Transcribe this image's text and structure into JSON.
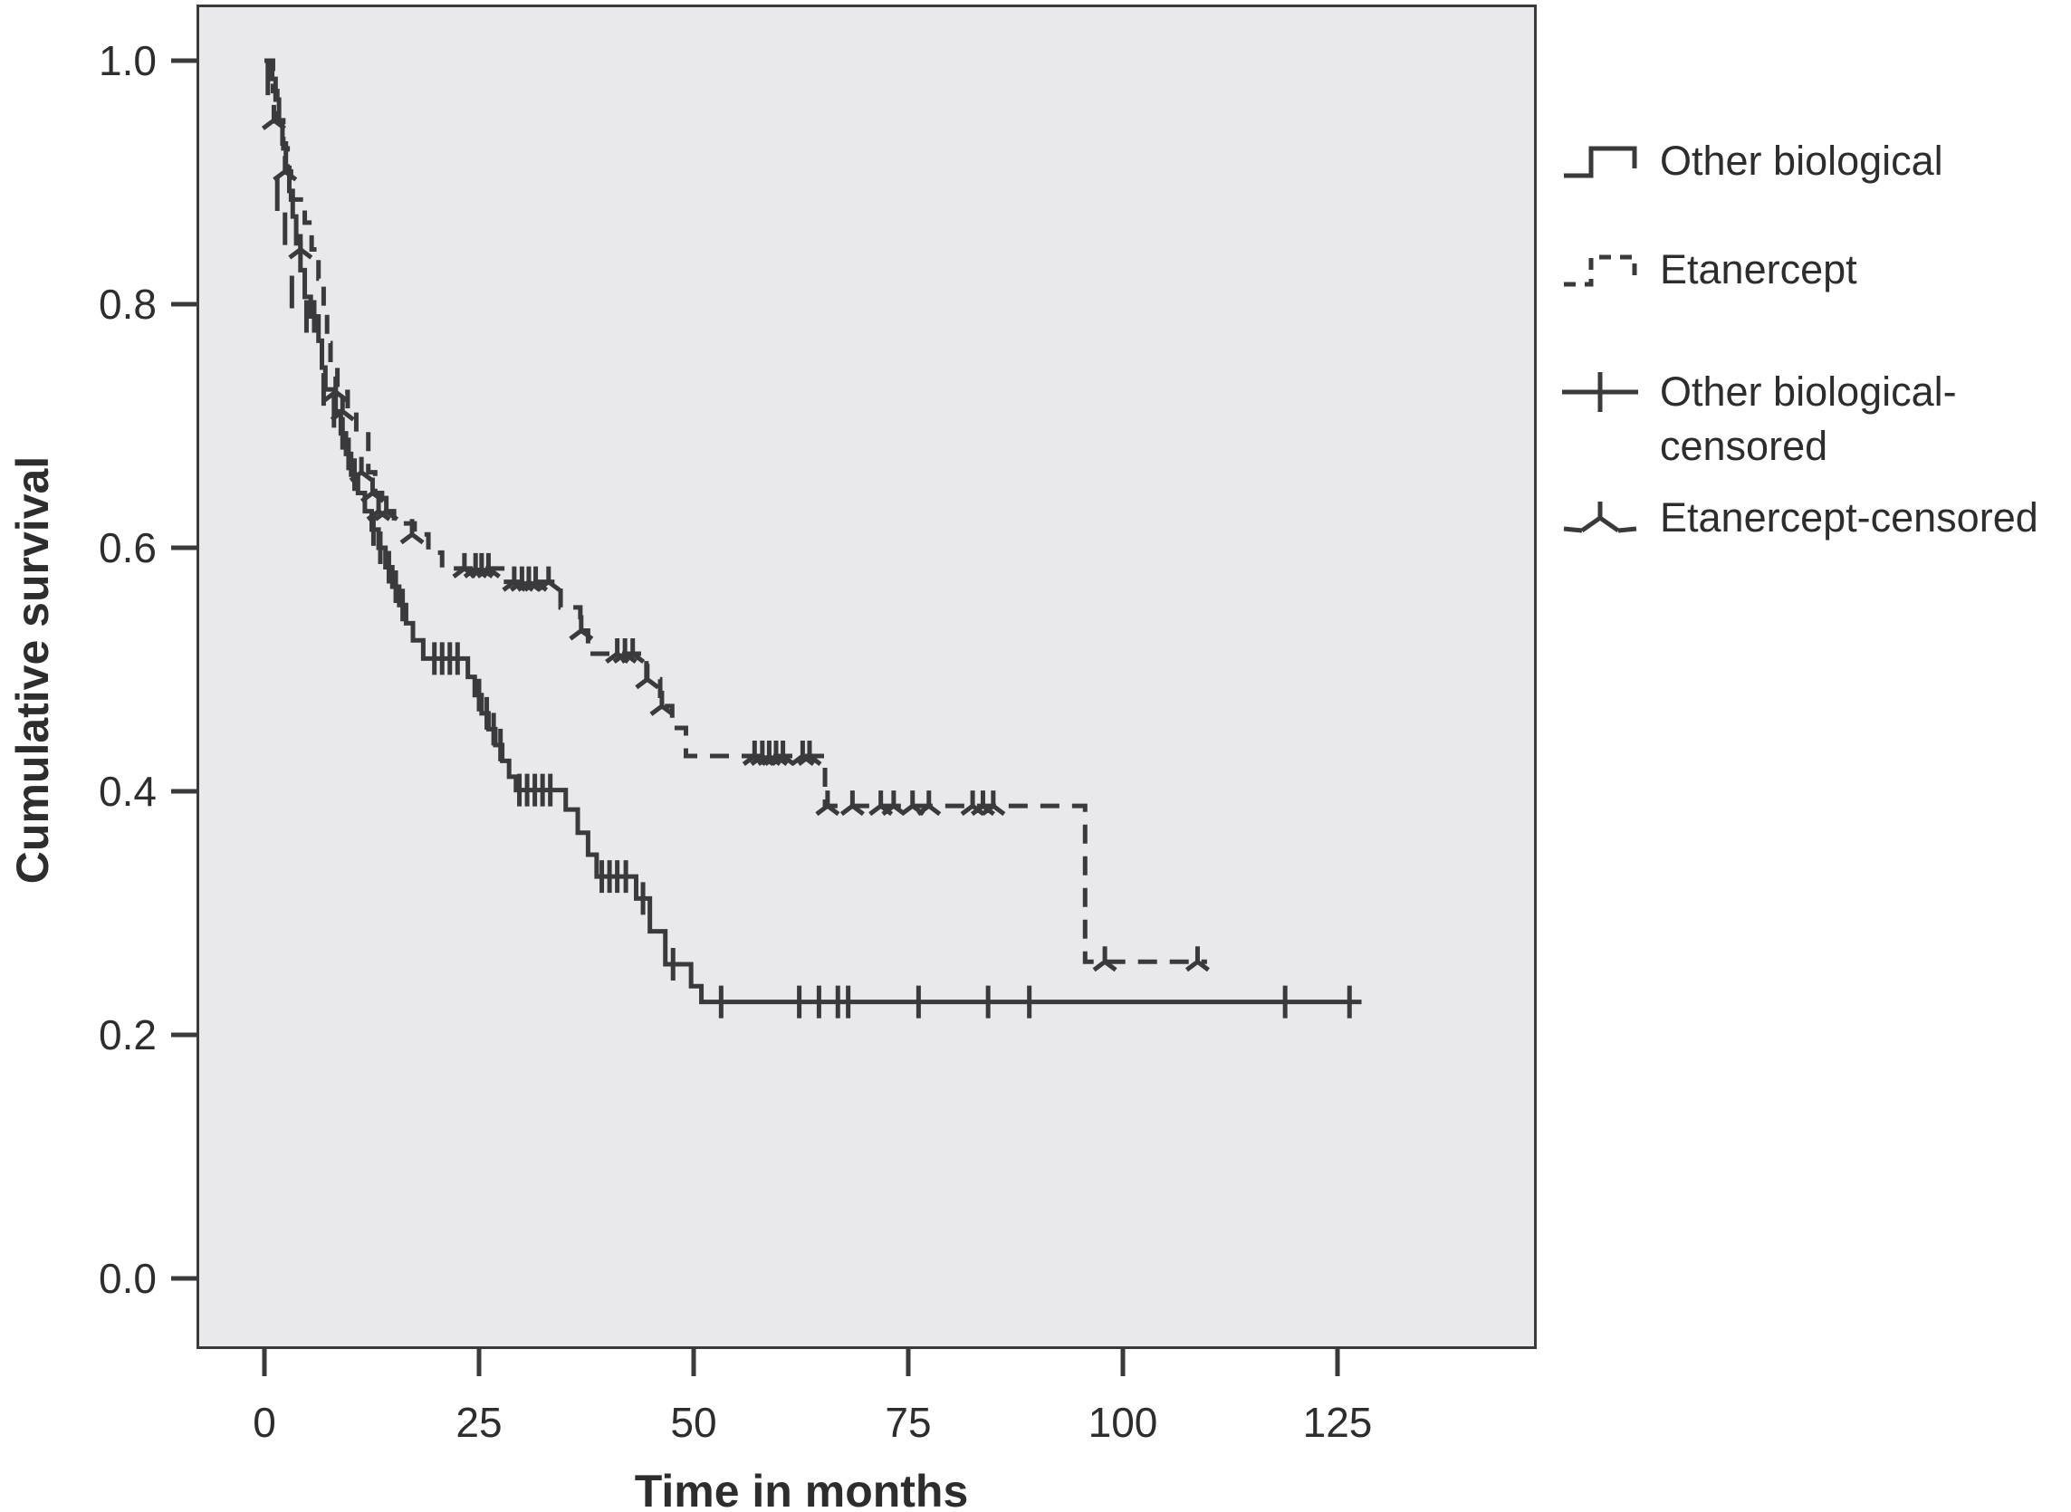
{
  "figure": {
    "background_color": "#ffffff",
    "plot_background_color": "#e9e9eb",
    "line_color": "#3a3a3c",
    "text_color": "#2d2d2f",
    "border_color": "#3a3a3c"
  },
  "axes": {
    "y": {
      "title": "Cumulative survival",
      "tick_labels": [
        "1.0",
        "0.8",
        "0.6",
        "0.4",
        "0.2",
        "0.0"
      ],
      "tick_values": [
        1.0,
        0.8,
        0.6,
        0.4,
        0.2,
        0.0
      ]
    },
    "x": {
      "title": "Time in months",
      "tick_labels": [
        "0",
        "25",
        "50",
        "75",
        "100",
        "125"
      ],
      "tick_values": [
        0,
        25,
        50,
        75,
        100,
        125
      ]
    }
  },
  "legend": {
    "items": [
      {
        "label": "Other biological",
        "label_lines": [
          "Other biological"
        ],
        "symbol": "solid-step"
      },
      {
        "label": "Etanercept",
        "label_lines": [
          "Etanercept"
        ],
        "symbol": "dashed-step"
      },
      {
        "label": "Other biological-censored",
        "label_lines": [
          "Other biological-",
          "censored"
        ],
        "symbol": "plus"
      },
      {
        "label": "Etanercept-censored",
        "label_lines": [
          "Etanercept-censored"
        ],
        "symbol": "tripod"
      }
    ]
  },
  "chart_data": {
    "type": "line",
    "subtype": "kaplan-meier-step",
    "title": "",
    "xlabel": "Time in months",
    "ylabel": "Cumulative survival",
    "xlim": [
      -7.9,
      148.2
    ],
    "ylim": [
      0.0,
      1.0
    ],
    "grid": false,
    "legend_position": "right-outside",
    "series": [
      {
        "name": "Other biological",
        "style": "solid",
        "censor_marker": "plus",
        "steps": [
          [
            0,
            1.0
          ],
          [
            0.9,
            0.985
          ],
          [
            1.3,
            0.968
          ],
          [
            1.7,
            0.95
          ],
          [
            2.1,
            0.932
          ],
          [
            2.5,
            0.912
          ],
          [
            2.9,
            0.893
          ],
          [
            3.3,
            0.872
          ],
          [
            3.7,
            0.85
          ],
          [
            4.2,
            0.828
          ],
          [
            4.7,
            0.806
          ],
          [
            5.4,
            0.79
          ],
          [
            6.3,
            0.77
          ],
          [
            6.7,
            0.748
          ],
          [
            7.1,
            0.73
          ],
          [
            8.3,
            0.712
          ],
          [
            8.9,
            0.694
          ],
          [
            9.5,
            0.677
          ],
          [
            10.1,
            0.66
          ],
          [
            10.9,
            0.645
          ],
          [
            11.7,
            0.63
          ],
          [
            12.5,
            0.615
          ],
          [
            13.3,
            0.6
          ],
          [
            14.1,
            0.584
          ],
          [
            14.9,
            0.568
          ],
          [
            15.7,
            0.553
          ],
          [
            16.5,
            0.538
          ],
          [
            17.3,
            0.524
          ],
          [
            18.5,
            0.509
          ],
          [
            23.7,
            0.494
          ],
          [
            24.5,
            0.479
          ],
          [
            25.3,
            0.464
          ],
          [
            26.1,
            0.451
          ],
          [
            26.9,
            0.438
          ],
          [
            27.7,
            0.425
          ],
          [
            28.5,
            0.412
          ],
          [
            29.3,
            0.401
          ],
          [
            35.1,
            0.385
          ],
          [
            36.5,
            0.366
          ],
          [
            37.7,
            0.348
          ],
          [
            38.7,
            0.33
          ],
          [
            43.3,
            0.312
          ],
          [
            44.9,
            0.285
          ],
          [
            46.7,
            0.258
          ],
          [
            49.7,
            0.24
          ],
          [
            50.9,
            0.227
          ]
        ],
        "end_time": 127.8,
        "censored": [
          [
            0.4,
            0.985
          ],
          [
            1.5,
            0.89
          ],
          [
            2.4,
            0.862
          ],
          [
            3.2,
            0.81
          ],
          [
            4.9,
            0.79
          ],
          [
            5.8,
            0.79
          ],
          [
            6.9,
            0.73
          ],
          [
            8.1,
            0.712
          ],
          [
            9.1,
            0.694
          ],
          [
            9.8,
            0.677
          ],
          [
            10.5,
            0.66
          ],
          [
            12.7,
            0.615
          ],
          [
            13.5,
            0.6
          ],
          [
            14.5,
            0.584
          ],
          [
            15.3,
            0.568
          ],
          [
            16.1,
            0.553
          ],
          [
            19.8,
            0.509
          ],
          [
            20.7,
            0.509
          ],
          [
            21.6,
            0.509
          ],
          [
            22.5,
            0.509
          ],
          [
            25.0,
            0.479
          ],
          [
            25.9,
            0.464
          ],
          [
            26.7,
            0.451
          ],
          [
            27.5,
            0.438
          ],
          [
            29.7,
            0.401
          ],
          [
            30.6,
            0.401
          ],
          [
            31.5,
            0.401
          ],
          [
            32.4,
            0.401
          ],
          [
            33.3,
            0.401
          ],
          [
            39.3,
            0.33
          ],
          [
            40.2,
            0.33
          ],
          [
            41.1,
            0.33
          ],
          [
            42.1,
            0.33
          ],
          [
            44.1,
            0.312
          ],
          [
            47.6,
            0.258
          ],
          [
            53.2,
            0.227
          ],
          [
            62.3,
            0.227
          ],
          [
            64.6,
            0.227
          ],
          [
            66.8,
            0.227
          ],
          [
            68.0,
            0.227
          ],
          [
            76.2,
            0.227
          ],
          [
            84.3,
            0.227
          ],
          [
            89.1,
            0.227
          ],
          [
            118.9,
            0.227
          ],
          [
            126.4,
            0.227
          ]
        ]
      },
      {
        "name": "Etanercept",
        "style": "dashed",
        "censor_marker": "tripod",
        "steps": [
          [
            0,
            1.0
          ],
          [
            1.0,
            0.975
          ],
          [
            1.5,
            0.951
          ],
          [
            2.2,
            0.928
          ],
          [
            2.7,
            0.909
          ],
          [
            3.1,
            0.886
          ],
          [
            4.7,
            0.867
          ],
          [
            5.5,
            0.845
          ],
          [
            6.3,
            0.821
          ],
          [
            6.9,
            0.798
          ],
          [
            7.3,
            0.768
          ],
          [
            7.7,
            0.75
          ],
          [
            8.5,
            0.728
          ],
          [
            9.7,
            0.712
          ],
          [
            10.7,
            0.695
          ],
          [
            12.1,
            0.662
          ],
          [
            12.9,
            0.645
          ],
          [
            13.7,
            0.63
          ],
          [
            15.1,
            0.62
          ],
          [
            17.5,
            0.611
          ],
          [
            19.1,
            0.596
          ],
          [
            20.7,
            0.583
          ],
          [
            27.7,
            0.572
          ],
          [
            34.5,
            0.551
          ],
          [
            36.8,
            0.532
          ],
          [
            37.7,
            0.513
          ],
          [
            44.5,
            0.492
          ],
          [
            46.1,
            0.47
          ],
          [
            47.5,
            0.452
          ],
          [
            49.1,
            0.429
          ],
          [
            65.3,
            0.388
          ],
          [
            95.6,
            0.26
          ]
        ],
        "end_time": 109.8,
        "censored": [
          [
            1.1,
            0.951
          ],
          [
            2.4,
            0.909
          ],
          [
            4.2,
            0.845
          ],
          [
            8.3,
            0.728
          ],
          [
            9.1,
            0.712
          ],
          [
            11.3,
            0.662
          ],
          [
            12.6,
            0.645
          ],
          [
            13.3,
            0.63
          ],
          [
            14.2,
            0.63
          ],
          [
            17.2,
            0.611
          ],
          [
            23.3,
            0.583
          ],
          [
            24.6,
            0.583
          ],
          [
            25.3,
            0.583
          ],
          [
            26.1,
            0.583
          ],
          [
            29.1,
            0.572
          ],
          [
            30.0,
            0.572
          ],
          [
            30.8,
            0.572
          ],
          [
            31.6,
            0.572
          ],
          [
            33.1,
            0.572
          ],
          [
            36.9,
            0.532
          ],
          [
            41.1,
            0.513
          ],
          [
            42.0,
            0.513
          ],
          [
            42.9,
            0.513
          ],
          [
            44.6,
            0.492
          ],
          [
            46.3,
            0.47
          ],
          [
            57.1,
            0.429
          ],
          [
            58.0,
            0.429
          ],
          [
            58.8,
            0.429
          ],
          [
            59.6,
            0.429
          ],
          [
            60.4,
            0.429
          ],
          [
            62.7,
            0.429
          ],
          [
            63.5,
            0.429
          ],
          [
            65.6,
            0.388
          ],
          [
            68.5,
            0.388
          ],
          [
            71.8,
            0.388
          ],
          [
            73.3,
            0.388
          ],
          [
            75.5,
            0.388
          ],
          [
            77.4,
            0.388
          ],
          [
            82.5,
            0.388
          ],
          [
            83.7,
            0.388
          ],
          [
            84.9,
            0.388
          ],
          [
            97.9,
            0.26
          ],
          [
            108.7,
            0.26
          ]
        ]
      }
    ]
  }
}
